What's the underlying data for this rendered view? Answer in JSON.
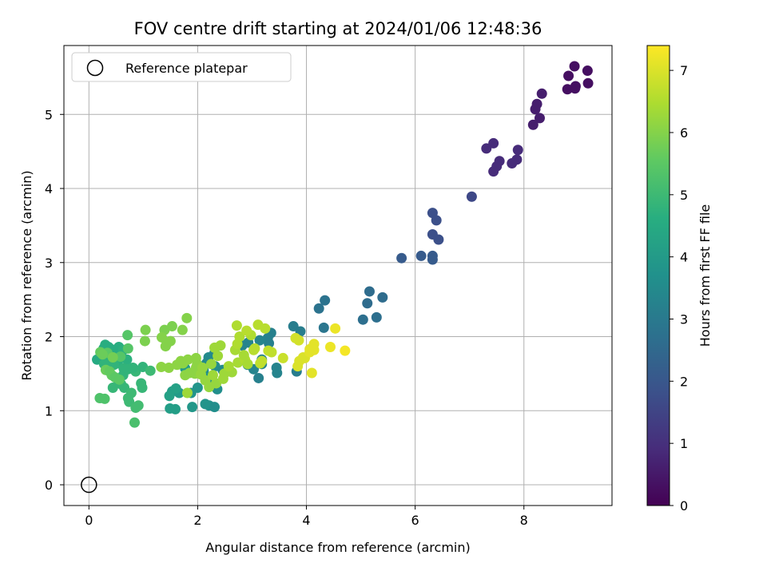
{
  "chart_data": {
    "type": "scatter",
    "title": "FOV centre drift starting at 2024/01/06 12:48:36",
    "xlabel": "Angular distance from reference (arcmin)",
    "ylabel": "Rotation from reference (arcmin)",
    "xlim": [
      -0.46,
      9.62
    ],
    "ylim": [
      -0.28,
      5.93
    ],
    "xticks": [
      "0",
      "2",
      "4",
      "6",
      "8"
    ],
    "yticks": [
      "0",
      "1",
      "2",
      "3",
      "4",
      "5"
    ],
    "grid": true,
    "legend": {
      "position": "top-left",
      "entries": [
        "Reference platepar"
      ]
    },
    "reference": {
      "x": 0,
      "y": 0
    },
    "colorbar": {
      "label": "Hours from first FF file",
      "colormap": "viridis",
      "range": [
        0,
        7.4
      ],
      "ticks": [
        "0",
        "1",
        "2",
        "3",
        "4",
        "5",
        "6",
        "7"
      ]
    },
    "series": [
      {
        "points": [
          [
            8.93,
            5.65,
            0.3
          ],
          [
            9.17,
            5.59,
            0.3
          ],
          [
            8.82,
            5.52,
            0.3
          ],
          [
            9.18,
            5.42,
            0.3
          ],
          [
            8.95,
            5.38,
            0.3
          ],
          [
            8.8,
            5.34,
            0.3
          ],
          [
            8.94,
            5.35,
            0.3
          ],
          [
            8.33,
            5.28,
            0.6
          ],
          [
            8.24,
            5.14,
            0.6
          ],
          [
            8.21,
            5.07,
            0.6
          ],
          [
            8.29,
            4.95,
            0.6
          ],
          [
            8.17,
            4.86,
            0.6
          ],
          [
            7.44,
            4.61,
            0.9
          ],
          [
            7.31,
            4.54,
            0.9
          ],
          [
            7.89,
            4.52,
            0.9
          ],
          [
            7.55,
            4.37,
            0.9
          ],
          [
            7.5,
            4.3,
            0.9
          ],
          [
            7.87,
            4.39,
            0.9
          ],
          [
            7.78,
            4.34,
            0.9
          ],
          [
            7.44,
            4.23,
            0.9
          ],
          [
            7.04,
            3.89,
            1.6
          ],
          [
            6.32,
            3.67,
            1.8
          ],
          [
            6.39,
            3.57,
            1.8
          ],
          [
            6.32,
            3.38,
            1.8
          ],
          [
            6.43,
            3.31,
            1.8
          ],
          [
            5.75,
            3.06,
            2.1
          ],
          [
            6.11,
            3.09,
            2.1
          ],
          [
            6.32,
            3.09,
            2.1
          ],
          [
            6.32,
            3.04,
            2.1
          ],
          [
            5.16,
            2.61,
            2.6
          ],
          [
            5.4,
            2.53,
            2.6
          ],
          [
            5.12,
            2.45,
            2.6
          ],
          [
            4.34,
            2.49,
            2.8
          ],
          [
            4.23,
            2.38,
            2.8
          ],
          [
            5.04,
            2.23,
            2.7
          ],
          [
            5.29,
            2.26,
            2.7
          ],
          [
            4.32,
            2.12,
            2.9
          ],
          [
            3.76,
            2.14,
            3.1
          ],
          [
            3.89,
            2.07,
            3.1
          ],
          [
            3.35,
            2.05,
            3.2
          ],
          [
            3.29,
            1.98,
            3.2
          ],
          [
            3.31,
            1.91,
            3.2
          ],
          [
            3.14,
            1.95,
            3.3
          ],
          [
            2.93,
            1.92,
            3.3
          ],
          [
            2.82,
            1.88,
            3.3
          ],
          [
            2.31,
            1.78,
            3.4
          ],
          [
            2.2,
            1.72,
            3.5
          ],
          [
            2.32,
            1.6,
            3.6
          ],
          [
            2.16,
            1.64,
            3.5
          ],
          [
            2.11,
            1.54,
            3.6
          ],
          [
            2.04,
            1.6,
            3.5
          ],
          [
            2.46,
            1.55,
            3.5
          ],
          [
            2.28,
            1.37,
            3.7
          ],
          [
            2.23,
            1.45,
            3.7
          ],
          [
            2.0,
            1.31,
            3.8
          ],
          [
            2.36,
            1.29,
            3.6
          ],
          [
            2.21,
            1.07,
            3.7
          ],
          [
            2.31,
            1.05,
            3.6
          ],
          [
            2.14,
            1.09,
            3.8
          ],
          [
            1.9,
            1.05,
            3.9
          ],
          [
            1.53,
            1.26,
            4.1
          ],
          [
            1.66,
            1.24,
            4.0
          ],
          [
            1.88,
            1.24,
            3.8
          ],
          [
            1.48,
            1.2,
            4.2
          ],
          [
            1.49,
            1.03,
            4.1
          ],
          [
            1.59,
            1.02,
            4.1
          ],
          [
            1.77,
            1.57,
            4.0
          ],
          [
            1.6,
            1.3,
            4.2
          ],
          [
            3.12,
            1.44,
            3.2
          ],
          [
            3.46,
            1.51,
            3.3
          ],
          [
            3.45,
            1.58,
            3.3
          ],
          [
            3.82,
            1.53,
            3.1
          ],
          [
            3.03,
            1.56,
            3.3
          ],
          [
            2.92,
            1.62,
            3.3
          ],
          [
            3.18,
            1.69,
            3.3
          ],
          [
            3.18,
            1.63,
            3.3
          ],
          [
            0.15,
            1.69,
            4.5
          ],
          [
            0.27,
            1.84,
            4.6
          ],
          [
            0.3,
            1.89,
            4.6
          ],
          [
            0.36,
            1.86,
            4.6
          ],
          [
            0.41,
            1.83,
            4.6
          ],
          [
            0.48,
            1.8,
            4.6
          ],
          [
            0.55,
            1.86,
            4.6
          ],
          [
            0.59,
            1.78,
            4.6
          ],
          [
            0.63,
            1.82,
            4.7
          ],
          [
            0.7,
            1.69,
            4.7
          ],
          [
            0.4,
            1.67,
            4.7
          ],
          [
            0.35,
            1.72,
            4.7
          ],
          [
            0.53,
            1.64,
            4.7
          ],
          [
            0.46,
            1.62,
            4.8
          ],
          [
            0.28,
            1.63,
            4.8
          ],
          [
            0.64,
            1.57,
            4.8
          ],
          [
            0.52,
            1.43,
            4.9
          ],
          [
            0.59,
            1.36,
            4.9
          ],
          [
            0.65,
            1.31,
            4.9
          ],
          [
            0.44,
            1.31,
            4.9
          ],
          [
            0.63,
            1.48,
            4.8
          ],
          [
            0.72,
            1.56,
            4.8
          ],
          [
            0.86,
            1.53,
            4.9
          ],
          [
            0.81,
            1.58,
            4.8
          ],
          [
            0.99,
            1.59,
            4.8
          ],
          [
            1.13,
            1.54,
            5.0
          ],
          [
            0.96,
            1.37,
            4.9
          ],
          [
            0.98,
            1.31,
            4.9
          ],
          [
            0.72,
            1.17,
            5.0
          ],
          [
            0.74,
            1.12,
            5.0
          ],
          [
            0.78,
            1.24,
            5.0
          ],
          [
            0.91,
            1.07,
            5.1
          ],
          [
            0.86,
            1.04,
            5.1
          ],
          [
            0.84,
            0.84,
            5.2
          ],
          [
            0.2,
            1.17,
            5.3
          ],
          [
            0.29,
            1.16,
            5.3
          ],
          [
            0.71,
            2.02,
            5.4
          ],
          [
            0.72,
            1.84,
            5.4
          ],
          [
            0.58,
            1.73,
            5.4
          ],
          [
            0.34,
            1.78,
            5.5
          ],
          [
            0.21,
            1.79,
            5.6
          ],
          [
            0.25,
            1.76,
            5.7
          ],
          [
            0.31,
            1.55,
            5.7
          ],
          [
            0.38,
            1.53,
            5.6
          ],
          [
            0.42,
            1.48,
            5.6
          ],
          [
            0.48,
            1.45,
            5.5
          ],
          [
            0.56,
            1.42,
            5.5
          ],
          [
            0.44,
            1.72,
            5.8
          ],
          [
            1.04,
            2.09,
            5.9
          ],
          [
            1.03,
            1.94,
            5.9
          ],
          [
            1.39,
            2.09,
            5.9
          ],
          [
            1.53,
            2.14,
            5.9
          ],
          [
            1.8,
            2.25,
            6.0
          ],
          [
            1.72,
            2.09,
            6.0
          ],
          [
            1.34,
            1.99,
            6.0
          ],
          [
            1.43,
            1.9,
            6.0
          ],
          [
            1.41,
            1.87,
            6.0
          ],
          [
            1.5,
            1.94,
            6.0
          ],
          [
            1.69,
            1.67,
            6.1
          ],
          [
            1.82,
            1.69,
            6.1
          ],
          [
            1.73,
            1.64,
            6.1
          ],
          [
            1.62,
            1.62,
            6.1
          ],
          [
            1.33,
            1.59,
            6.1
          ],
          [
            1.47,
            1.58,
            6.1
          ],
          [
            1.85,
            1.51,
            6.1
          ],
          [
            1.77,
            1.48,
            6.1
          ],
          [
            1.95,
            1.5,
            6.1
          ],
          [
            1.97,
            1.58,
            6.1
          ],
          [
            1.99,
            1.63,
            6.1
          ],
          [
            1.97,
            1.71,
            6.1
          ],
          [
            2.09,
            1.58,
            6.2
          ],
          [
            2.25,
            1.63,
            6.2
          ],
          [
            2.06,
            1.49,
            6.2
          ],
          [
            2.14,
            1.41,
            6.2
          ],
          [
            2.21,
            1.32,
            6.2
          ],
          [
            2.34,
            1.37,
            6.2
          ],
          [
            2.47,
            1.43,
            6.3
          ],
          [
            2.49,
            1.5,
            6.3
          ],
          [
            1.81,
            1.24,
            6.3
          ],
          [
            2.28,
            1.48,
            6.3
          ],
          [
            2.37,
            1.74,
            6.3
          ],
          [
            2.31,
            1.85,
            6.3
          ],
          [
            2.42,
            1.88,
            6.3
          ],
          [
            2.63,
            1.52,
            6.3
          ],
          [
            2.57,
            1.6,
            6.4
          ],
          [
            2.74,
            1.65,
            6.4
          ],
          [
            2.87,
            1.69,
            6.5
          ],
          [
            2.85,
            1.75,
            6.4
          ],
          [
            2.92,
            1.63,
            6.4
          ],
          [
            2.69,
            1.82,
            6.4
          ],
          [
            2.73,
            1.9,
            6.5
          ],
          [
            2.77,
            2.0,
            6.5
          ],
          [
            2.72,
            2.15,
            6.5
          ],
          [
            2.98,
            2.02,
            6.5
          ],
          [
            2.9,
            2.08,
            6.6
          ],
          [
            3.03,
            1.82,
            6.6
          ],
          [
            3.05,
            1.84,
            6.6
          ],
          [
            3.11,
            2.16,
            6.6
          ],
          [
            3.24,
            2.11,
            6.6
          ],
          [
            3.36,
            1.79,
            6.7
          ],
          [
            3.3,
            1.81,
            6.7
          ],
          [
            3.18,
            1.67,
            6.7
          ],
          [
            3.15,
            1.64,
            6.7
          ],
          [
            3.57,
            1.71,
            6.8
          ],
          [
            3.8,
            1.98,
            6.9
          ],
          [
            3.86,
            1.95,
            6.9
          ],
          [
            3.84,
            1.6,
            7.0
          ],
          [
            3.87,
            1.67,
            7.0
          ],
          [
            3.94,
            1.72,
            7.0
          ],
          [
            3.97,
            1.71,
            7.0
          ],
          [
            4.06,
            1.79,
            7.1
          ],
          [
            4.06,
            1.83,
            7.1
          ],
          [
            4.14,
            1.9,
            7.1
          ],
          [
            4.14,
            1.82,
            7.1
          ],
          [
            4.1,
            1.51,
            7.1
          ],
          [
            4.44,
            1.86,
            7.2
          ],
          [
            4.53,
            2.11,
            7.2
          ],
          [
            4.71,
            1.81,
            7.3
          ]
        ]
      }
    ]
  }
}
